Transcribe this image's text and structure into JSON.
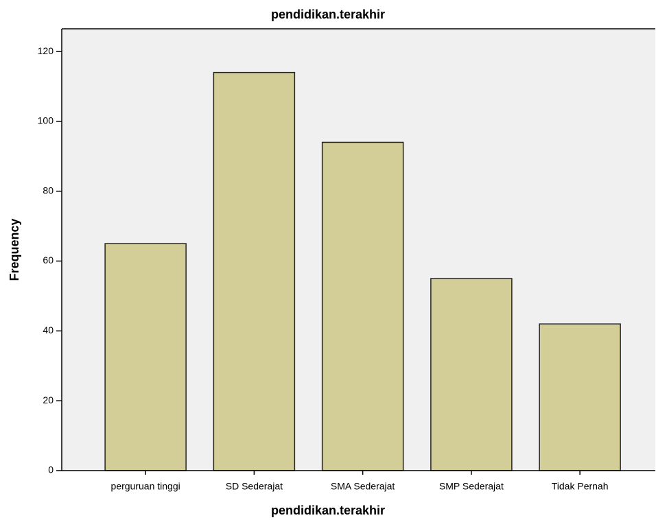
{
  "chart_data": {
    "type": "bar",
    "title": "pendidikan.terakhir",
    "x_label": "pendidikan.terakhir",
    "y_label": "Frequency",
    "categories": [
      "perguruan tinggi",
      "SD Sederajat",
      "SMA Sederajat",
      "SMP Sederajat",
      "Tidak Pernah"
    ],
    "values": [
      65,
      114,
      94,
      55,
      42
    ],
    "color": "#d3ce97",
    "ylim": [
      0,
      126.5
    ],
    "yticks": [
      0,
      20,
      40,
      60,
      80,
      100,
      120
    ],
    "grid": false
  }
}
